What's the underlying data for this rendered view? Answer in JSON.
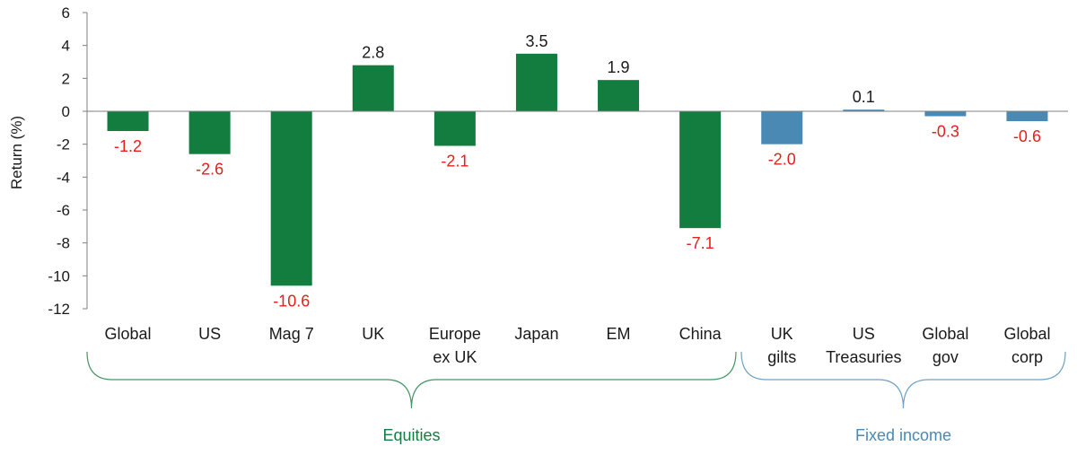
{
  "chart_data": {
    "type": "bar",
    "ylabel": "Return (%)",
    "ylim": [
      -12,
      6
    ],
    "yticks": [
      6,
      4,
      2,
      0,
      -2,
      -4,
      -6,
      -8,
      -10,
      -12
    ],
    "categories": [
      [
        "Global"
      ],
      [
        "US"
      ],
      [
        "Mag 7"
      ],
      [
        "UK"
      ],
      [
        "Europe",
        "ex UK"
      ],
      [
        "Japan"
      ],
      [
        "EM"
      ],
      [
        "China"
      ],
      [
        "UK",
        "gilts"
      ],
      [
        "US",
        "Treasuries"
      ],
      [
        "Global",
        "gov"
      ],
      [
        "Global",
        "corp"
      ]
    ],
    "values": [
      -1.2,
      -2.6,
      -10.6,
      2.8,
      -2.1,
      3.5,
      1.9,
      -7.1,
      -2.0,
      0.1,
      -0.3,
      -0.6
    ],
    "value_labels": [
      "-1.2",
      "-2.6",
      "-10.6",
      "2.8",
      "-2.1",
      "3.5",
      "1.9",
      "-7.1",
      "-2.0",
      "0.1",
      "-0.3",
      "-0.6"
    ],
    "groups": [
      {
        "name": "Equities",
        "start": 0,
        "end": 7,
        "color": "#137d3f"
      },
      {
        "name": "Fixed income",
        "start": 8,
        "end": 11,
        "color": "#4a89b4"
      }
    ],
    "colors": {
      "negative_label": "#e3201b",
      "positive_label": "#1a1a1a",
      "axis": "#7f7f7f"
    },
    "grid": false
  }
}
